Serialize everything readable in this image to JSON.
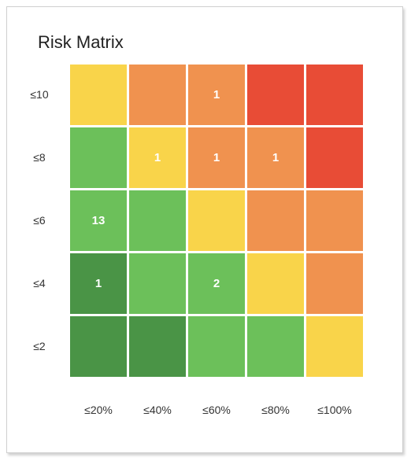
{
  "title": "Risk Matrix",
  "chart_data": {
    "type": "heatmap",
    "title": "Risk Matrix",
    "x_categories": [
      "≤20%",
      "≤40%",
      "≤60%",
      "≤80%",
      "≤100%"
    ],
    "y_categories": [
      "≤10",
      "≤8",
      "≤6",
      "≤4",
      "≤2"
    ],
    "colors": {
      "dark_green": "#4a9446",
      "green": "#6cc05a",
      "yellow": "#f9d44a",
      "orange": "#f0924f",
      "red": "#e84c36"
    },
    "cells": [
      [
        "yellow",
        "orange",
        "orange",
        "red",
        "red"
      ],
      [
        "green",
        "yellow",
        "orange",
        "orange",
        "red"
      ],
      [
        "green",
        "green",
        "yellow",
        "orange",
        "orange"
      ],
      [
        "dark_green",
        "green",
        "green",
        "yellow",
        "orange"
      ],
      [
        "dark_green",
        "dark_green",
        "green",
        "green",
        "yellow"
      ]
    ],
    "values": [
      [
        "",
        "",
        "1",
        "",
        ""
      ],
      [
        "",
        "1",
        "1",
        "1",
        ""
      ],
      [
        "13",
        "",
        "",
        "",
        ""
      ],
      [
        "1",
        "",
        "2",
        "",
        ""
      ],
      [
        "",
        "",
        "",
        "",
        ""
      ]
    ]
  }
}
